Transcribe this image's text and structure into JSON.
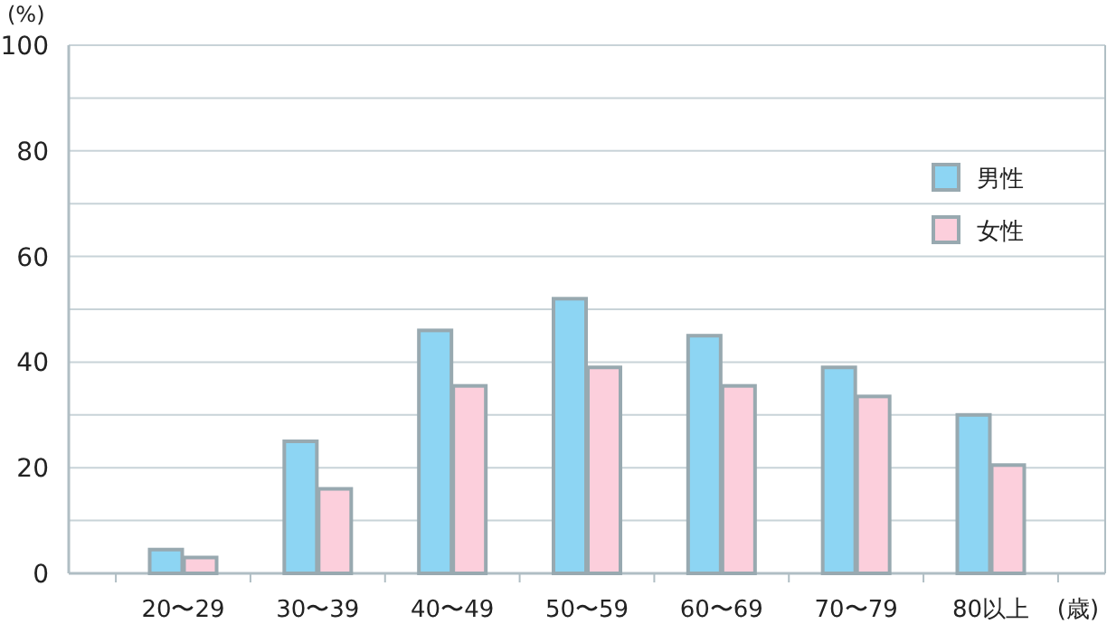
{
  "chart_data": {
    "type": "bar",
    "ylabel": "(%)",
    "xlabel": "(歳)",
    "categories": [
      "20〜29",
      "30〜39",
      "40〜49",
      "50〜59",
      "60〜69",
      "70〜79",
      "80以上"
    ],
    "series": [
      {
        "name": "男性",
        "color": "#8dd5f3",
        "values": [
          4.5,
          25,
          46,
          52,
          45,
          39,
          30
        ]
      },
      {
        "name": "女性",
        "color": "#fccfdc",
        "values": [
          3,
          16,
          35.5,
          39,
          35.5,
          33.5,
          20.5
        ]
      }
    ],
    "ylim": [
      0,
      100
    ],
    "yticks": [
      0,
      {
        "value": 10,
        "label": null
      },
      20,
      {
        "value": 30,
        "label": null
      },
      40,
      {
        "value": 50,
        "label": null
      },
      60,
      {
        "value": 70,
        "label": null
      },
      80,
      {
        "value": 90,
        "label": null
      },
      100
    ],
    "grid": "y",
    "legend": "top right"
  }
}
